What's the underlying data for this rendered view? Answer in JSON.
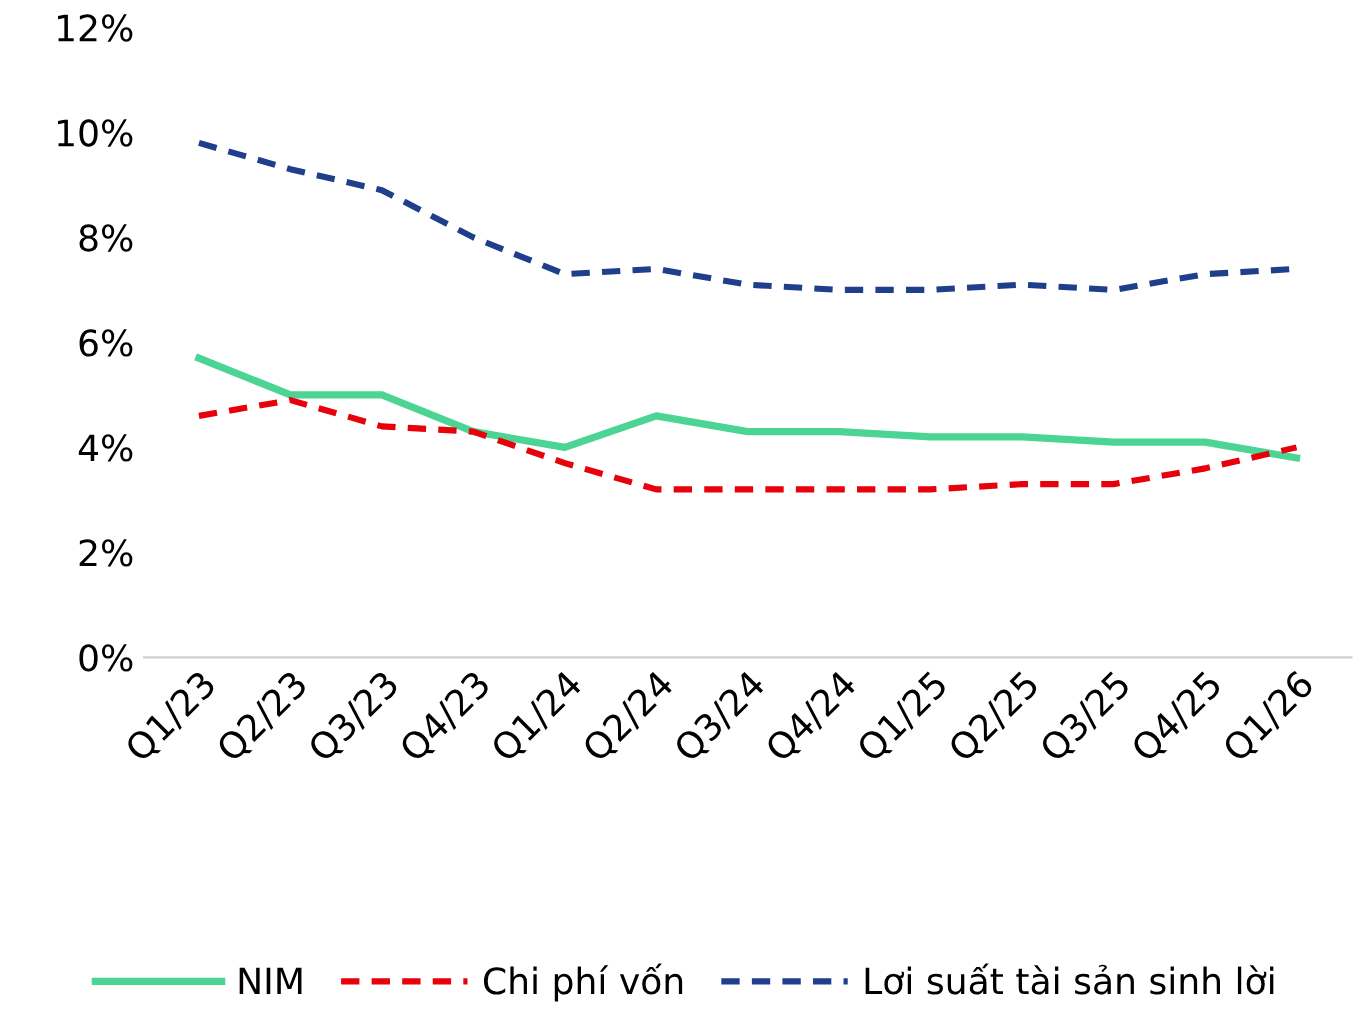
{
  "chart_data": {
    "type": "line",
    "categories": [
      "Q1/23",
      "Q2/23",
      "Q3/23",
      "Q4/23",
      "Q1/24",
      "Q2/24",
      "Q3/24",
      "Q4/24",
      "Q1/25",
      "Q2/25",
      "Q3/25",
      "Q4/25",
      "Q1/26"
    ],
    "series": [
      {
        "name": "NIM",
        "color": "#4cd494",
        "line_style": "solid",
        "values": [
          5.7,
          5.0,
          5.0,
          4.3,
          4.0,
          4.6,
          4.3,
          4.3,
          4.2,
          4.2,
          4.1,
          4.1,
          3.8
        ]
      },
      {
        "name": "Chi phí vốn",
        "color": "#e8000b",
        "line_style": "dashed",
        "values": [
          4.6,
          4.9,
          4.4,
          4.3,
          3.7,
          3.2,
          3.2,
          3.2,
          3.2,
          3.3,
          3.3,
          3.6,
          4.0
        ]
      },
      {
        "name": "Lơi suất tài sản sinh lời",
        "color": "#1f3f8c",
        "line_style": "dashed",
        "values": [
          9.8,
          9.3,
          8.9,
          8.0,
          7.3,
          7.4,
          7.1,
          7.0,
          7.0,
          7.1,
          7.0,
          7.3,
          7.4
        ]
      }
    ],
    "ylim": [
      0,
      12
    ],
    "yticks": [
      {
        "value": 0,
        "label": "0%"
      },
      {
        "value": 2,
        "label": "2%"
      },
      {
        "value": 4,
        "label": "4%"
      },
      {
        "value": 6,
        "label": "6%"
      },
      {
        "value": 8,
        "label": "8%"
      },
      {
        "value": 10,
        "label": "10%"
      },
      {
        "value": 12,
        "label": "12%"
      }
    ],
    "grid": false,
    "legend": "bottom",
    "marker": "none"
  }
}
